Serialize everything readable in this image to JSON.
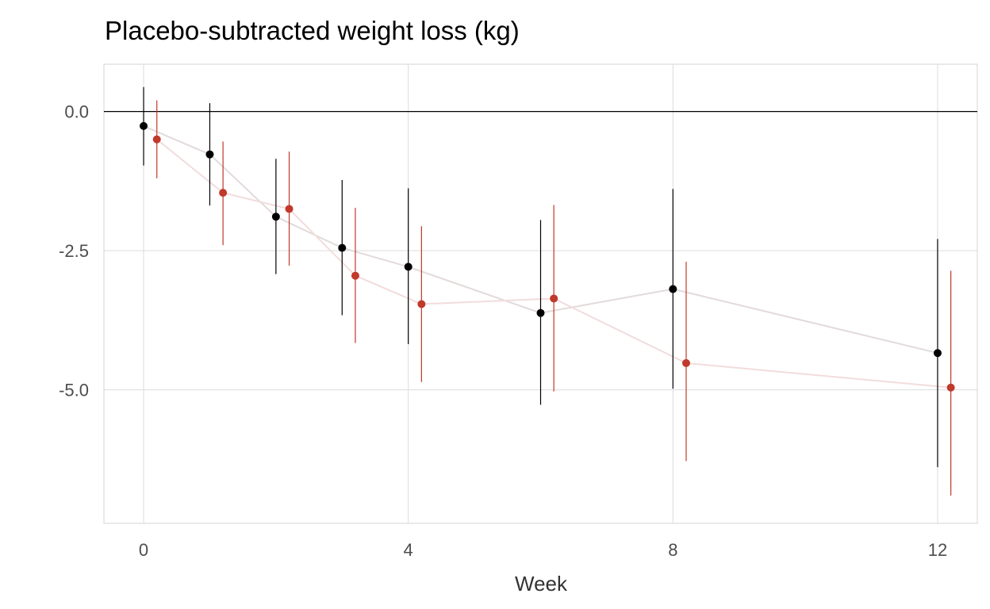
{
  "chart_data": {
    "type": "scatter",
    "title": "Placebo-subtracted weight loss (kg)",
    "xlabel": "Week",
    "ylabel": "",
    "xlim": [
      -0.6,
      12.6
    ],
    "ylim": [
      -7.4,
      0.85
    ],
    "x_ticks": [
      0,
      4,
      8,
      12
    ],
    "x_tick_labels": [
      "0",
      "4",
      "8",
      "12"
    ],
    "y_ticks": [
      0,
      -2.5,
      -5
    ],
    "y_tick_labels": [
      "0.0",
      "-2.5",
      "-5.0"
    ],
    "reference_line_y": 0,
    "grid": true,
    "legend": "none",
    "dodge": 0.2,
    "series": [
      {
        "color": "#000000",
        "line_color": "#e3dada",
        "x": [
          0,
          1,
          2,
          3,
          4,
          6,
          8,
          12
        ],
        "y": [
          -0.26,
          -0.77,
          -1.89,
          -2.45,
          -2.79,
          -3.62,
          -3.19,
          -4.34
        ],
        "lower": [
          -0.97,
          -1.69,
          -2.92,
          -3.66,
          -4.18,
          -5.27,
          -4.98,
          -6.39
        ],
        "upper": [
          0.44,
          0.15,
          -0.85,
          -1.23,
          -1.38,
          -1.95,
          -1.39,
          -2.29
        ]
      },
      {
        "color": "#c0392b",
        "line_color": "#f2dcdc",
        "x": [
          0,
          1,
          2,
          3,
          4,
          6,
          8,
          12
        ],
        "y": [
          -0.5,
          -1.46,
          -1.75,
          -2.95,
          -3.46,
          -3.36,
          -4.52,
          -4.96
        ],
        "lower": [
          -1.2,
          -2.4,
          -2.77,
          -4.16,
          -4.86,
          -5.03,
          -6.28,
          -6.9
        ],
        "upper": [
          0.2,
          -0.54,
          -0.72,
          -1.73,
          -2.06,
          -1.68,
          -2.7,
          -2.86
        ]
      }
    ]
  }
}
